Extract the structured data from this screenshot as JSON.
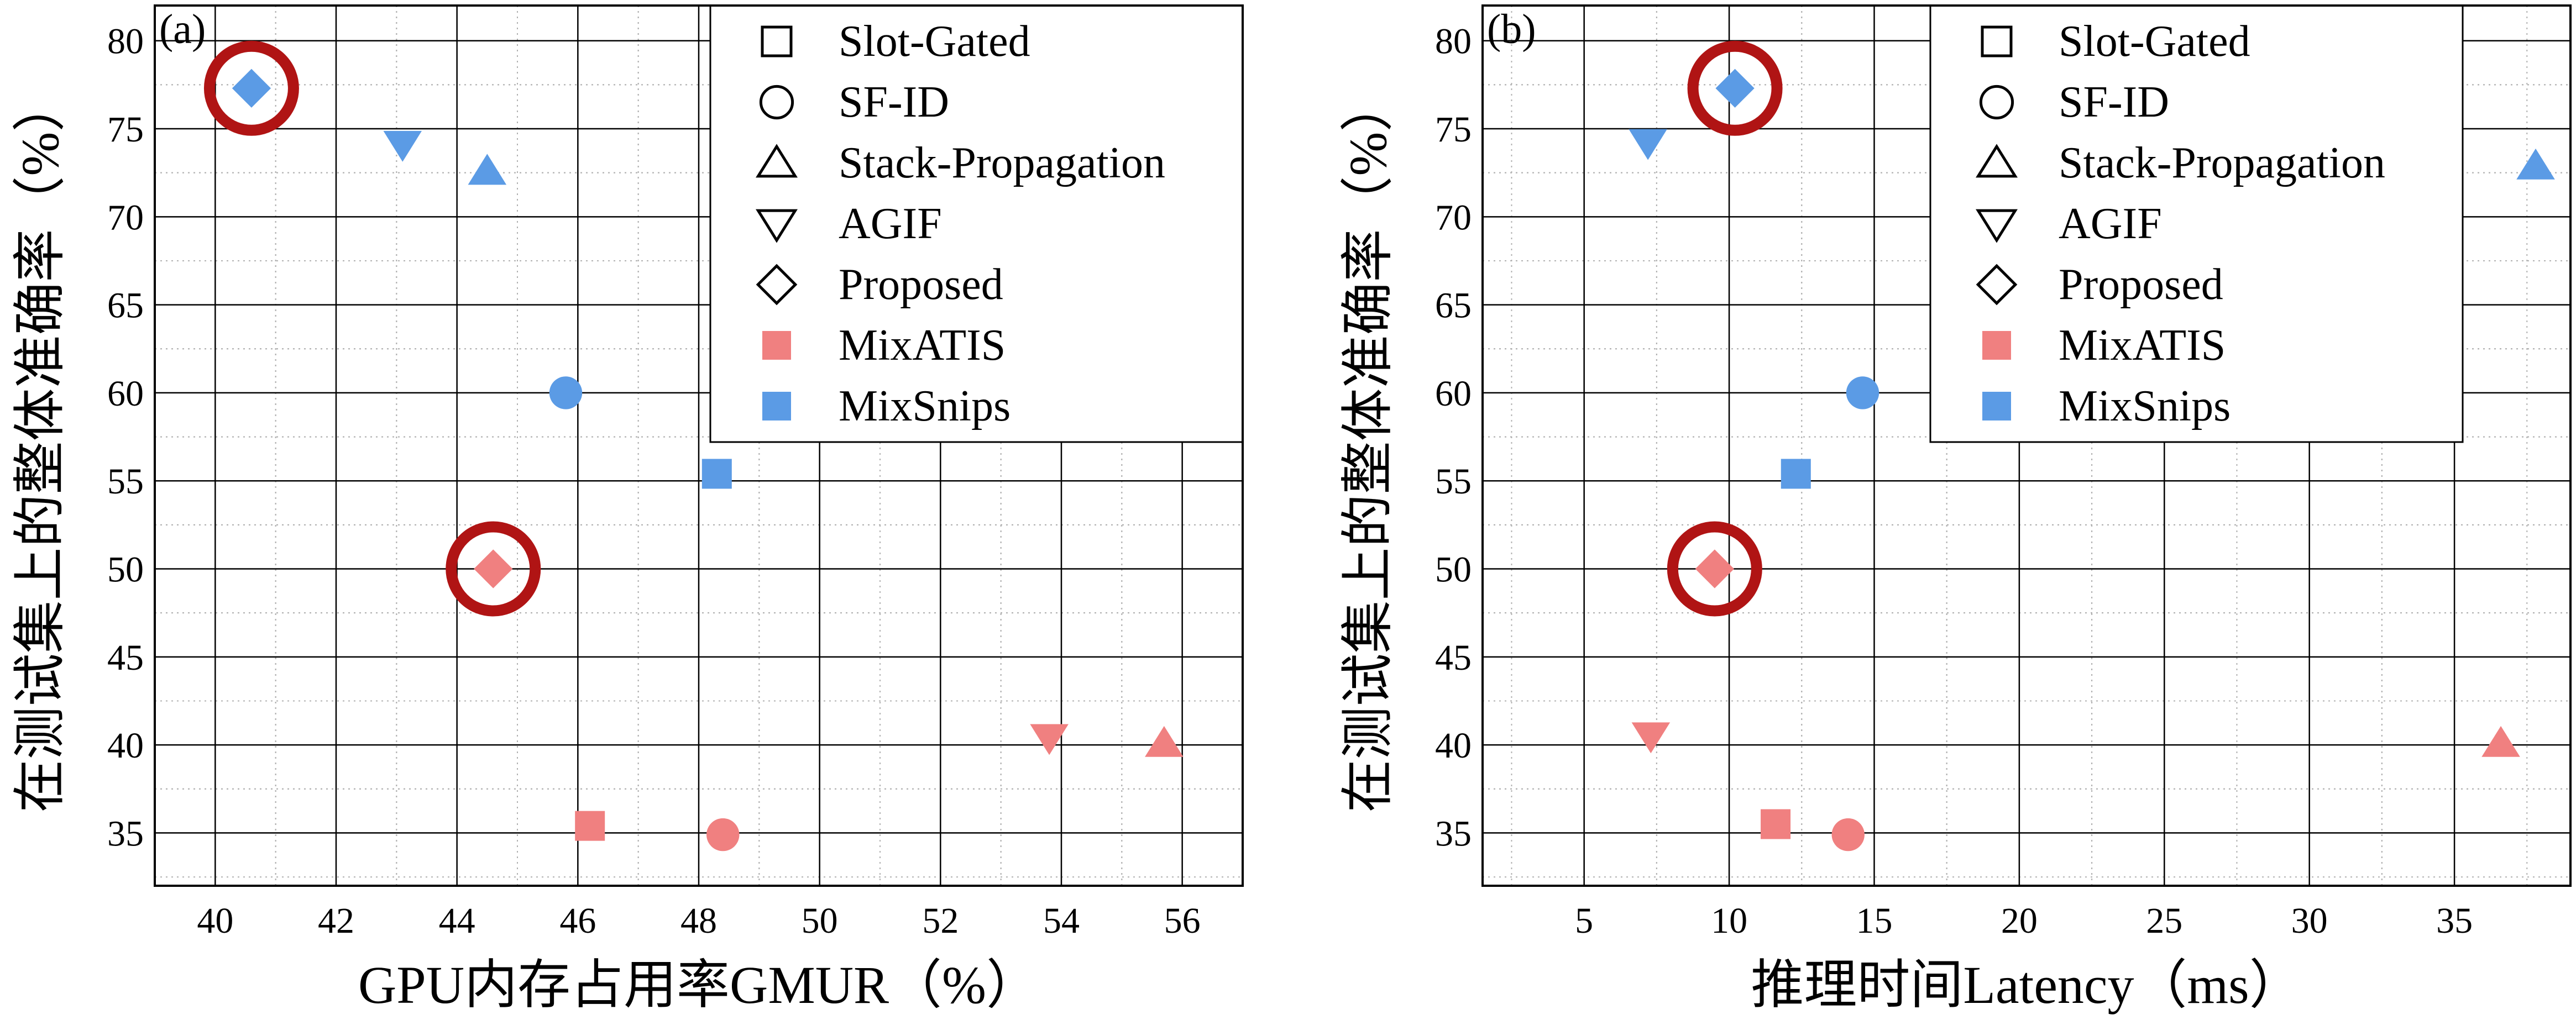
{
  "colors": {
    "MixATIS": "#F08080",
    "MixSnips": "#5B9BE5",
    "highlight": "#B01414",
    "grid": "#000000",
    "background": "#ffffff"
  },
  "legend_items": [
    {
      "label": "Slot-Gated",
      "marker": "square"
    },
    {
      "label": "SF-ID",
      "marker": "circle"
    },
    {
      "label": "Stack-Propagation",
      "marker": "triangle-up"
    },
    {
      "label": "AGIF",
      "marker": "triangle-down"
    },
    {
      "label": "Proposed",
      "marker": "diamond"
    },
    {
      "label": "MixATIS",
      "marker": "filled-square",
      "color": "MixATIS"
    },
    {
      "label": "MixSnips",
      "marker": "filled-square",
      "color": "MixSnips"
    }
  ],
  "chart_data": [
    {
      "type": "scatter",
      "panel_label": "(a)",
      "xlabel": "GPU内存占用率GMUR（%）",
      "ylabel": "在测试集上的整体准确率（%）",
      "xlim": [
        39,
        57
      ],
      "ylim": [
        32,
        82
      ],
      "xticks": [
        40,
        42,
        44,
        46,
        48,
        50,
        52,
        54,
        56
      ],
      "yticks": [
        35,
        40,
        45,
        50,
        55,
        60,
        65,
        70,
        75,
        80
      ],
      "grid": true,
      "legend_position": "top-right",
      "series": [
        {
          "name": "MixATIS",
          "points": [
            {
              "model": "Slot-Gated",
              "marker": "square",
              "x": 46.2,
              "y": 35.4
            },
            {
              "model": "SF-ID",
              "marker": "circle",
              "x": 48.4,
              "y": 34.9
            },
            {
              "model": "Stack-Propagation",
              "marker": "triangle-up",
              "x": 55.7,
              "y": 40.1
            },
            {
              "model": "AGIF",
              "marker": "triangle-down",
              "x": 53.8,
              "y": 40.4
            },
            {
              "model": "Proposed",
              "marker": "diamond",
              "x": 44.6,
              "y": 50.0,
              "highlighted": true
            }
          ]
        },
        {
          "name": "MixSnips",
          "points": [
            {
              "model": "Slot-Gated",
              "marker": "square",
              "x": 48.3,
              "y": 55.4
            },
            {
              "model": "SF-ID",
              "marker": "circle",
              "x": 45.8,
              "y": 60.0
            },
            {
              "model": "Stack-Propagation",
              "marker": "triangle-up",
              "x": 44.5,
              "y": 72.6
            },
            {
              "model": "AGIF",
              "marker": "triangle-down",
              "x": 43.1,
              "y": 74.1
            },
            {
              "model": "Proposed",
              "marker": "diamond",
              "x": 40.6,
              "y": 77.3,
              "highlighted": true
            }
          ]
        }
      ]
    },
    {
      "type": "scatter",
      "panel_label": "(b)",
      "xlabel": "推理时间Latency（ms）",
      "ylabel": "在测试集上的整体准确率（%）",
      "xlim": [
        1.5,
        39
      ],
      "ylim": [
        32,
        82
      ],
      "xticks": [
        5,
        10,
        15,
        20,
        25,
        30,
        35
      ],
      "yticks": [
        35,
        40,
        45,
        50,
        55,
        60,
        65,
        70,
        75,
        80
      ],
      "grid": true,
      "legend_position": "top-right",
      "series": [
        {
          "name": "MixATIS",
          "points": [
            {
              "model": "Slot-Gated",
              "marker": "square",
              "x": 11.6,
              "y": 35.5
            },
            {
              "model": "SF-ID",
              "marker": "circle",
              "x": 14.1,
              "y": 34.9
            },
            {
              "model": "Stack-Propagation",
              "marker": "triangle-up",
              "x": 36.6,
              "y": 40.1
            },
            {
              "model": "AGIF",
              "marker": "triangle-down",
              "x": 7.3,
              "y": 40.5
            },
            {
              "model": "Proposed",
              "marker": "diamond",
              "x": 9.5,
              "y": 50.0,
              "highlighted": true
            }
          ]
        },
        {
          "name": "MixSnips",
          "points": [
            {
              "model": "Slot-Gated",
              "marker": "square",
              "x": 12.3,
              "y": 55.4
            },
            {
              "model": "SF-ID",
              "marker": "circle",
              "x": 14.6,
              "y": 60.0
            },
            {
              "model": "Stack-Propagation",
              "marker": "triangle-up",
              "x": 37.8,
              "y": 72.9
            },
            {
              "model": "AGIF",
              "marker": "triangle-down",
              "x": 7.2,
              "y": 74.2
            },
            {
              "model": "Proposed",
              "marker": "diamond",
              "x": 10.2,
              "y": 77.3,
              "highlighted": true
            }
          ]
        }
      ]
    }
  ]
}
